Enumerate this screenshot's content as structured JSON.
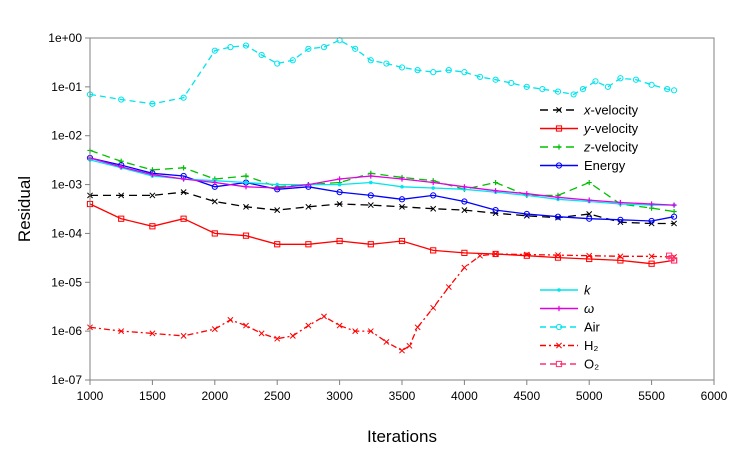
{
  "chart_data": {
    "type": "line",
    "xlabel": "Iterations",
    "ylabel": "Residual",
    "xlim": [
      1000,
      6000
    ],
    "ylim": [
      1e-07,
      1
    ],
    "yscale": "log",
    "x_ticks": [
      "1000",
      "1500",
      "2000",
      "2500",
      "3000",
      "3500",
      "4000",
      "4500",
      "5000",
      "5500",
      "6000"
    ],
    "y_ticks": [
      "1e-07",
      "1e-06",
      "1e-05",
      "1e-04",
      "1e-03",
      "1e-02",
      "1e-01",
      "1e+00"
    ],
    "grid": false,
    "legends": [
      {
        "placement": "upper-right",
        "entries": [
          "x-velocity",
          "y-velocity",
          "z-velocity",
          "Energy"
        ]
      },
      {
        "placement": "lower-right",
        "entries": [
          "k",
          "ω",
          "Air",
          "H₂",
          "O₂"
        ]
      }
    ],
    "series": [
      {
        "name": "x-velocity",
        "color": "#000000",
        "dash": "8,5",
        "marker": "x",
        "x": [
          1000,
          1250,
          1500,
          1750,
          2000,
          2250,
          2500,
          2750,
          3000,
          3250,
          3500,
          3750,
          4000,
          4250,
          4500,
          4750,
          5000,
          5250,
          5500,
          5680
        ],
        "y": [
          0.0006,
          0.0006,
          0.0006,
          0.0007,
          0.00045,
          0.00035,
          0.0003,
          0.00035,
          0.0004,
          0.00038,
          0.00035,
          0.00032,
          0.0003,
          0.00026,
          0.00023,
          0.00021,
          0.00025,
          0.00017,
          0.00016,
          0.00016
        ]
      },
      {
        "name": "y-velocity",
        "color": "#ff0000",
        "dash": "",
        "marker": "square",
        "x": [
          1000,
          1250,
          1500,
          1750,
          2000,
          2250,
          2500,
          2750,
          3000,
          3250,
          3500,
          3750,
          4000,
          4250,
          4500,
          4750,
          5000,
          5250,
          5500,
          5680
        ],
        "y": [
          0.0004,
          0.0002,
          0.00014,
          0.0002,
          0.0001,
          9e-05,
          6e-05,
          6e-05,
          7e-05,
          6e-05,
          7e-05,
          4.5e-05,
          4e-05,
          3.8e-05,
          3.5e-05,
          3.2e-05,
          3e-05,
          2.8e-05,
          2.4e-05,
          2.8e-05
        ]
      },
      {
        "name": "z-velocity",
        "color": "#00c000",
        "dash": "8,5",
        "marker": "plus",
        "x": [
          1000,
          1250,
          1500,
          1750,
          2000,
          2250,
          2500,
          2750,
          3000,
          3250,
          3500,
          3750,
          4000,
          4250,
          4500,
          4750,
          5000,
          5250,
          5500,
          5680
        ],
        "y": [
          0.005,
          0.003,
          0.002,
          0.0022,
          0.0013,
          0.0015,
          0.0009,
          0.001,
          0.0011,
          0.0017,
          0.0014,
          0.0012,
          0.0008,
          0.0011,
          0.0006,
          0.0006,
          0.0011,
          0.0004,
          0.00033,
          0.00028
        ]
      },
      {
        "name": "Energy",
        "color": "#0000ff",
        "dash": "",
        "marker": "circle",
        "x": [
          1000,
          1250,
          1500,
          1750,
          2000,
          2250,
          2500,
          2750,
          3000,
          3250,
          3500,
          3750,
          4000,
          4250,
          4500,
          4750,
          5000,
          5250,
          5500,
          5680
        ],
        "y": [
          0.0035,
          0.0025,
          0.0017,
          0.0015,
          0.0009,
          0.0011,
          0.0008,
          0.0009,
          0.0007,
          0.0006,
          0.0005,
          0.0006,
          0.00045,
          0.0003,
          0.00025,
          0.00022,
          0.0002,
          0.00019,
          0.00018,
          0.00022
        ]
      },
      {
        "name": "k",
        "color": "#00e5ee",
        "dash": "",
        "marker": "dot",
        "x": [
          1000,
          1250,
          1500,
          1750,
          2000,
          2250,
          2500,
          2750,
          3000,
          3250,
          3500,
          3750,
          4000,
          4250,
          4500,
          4750,
          5000,
          5250,
          5500,
          5680
        ],
        "y": [
          0.0032,
          0.0022,
          0.0015,
          0.0013,
          0.0012,
          0.0011,
          0.001,
          0.001,
          0.001,
          0.0011,
          0.0009,
          0.00085,
          0.0008,
          0.0007,
          0.0006,
          0.0005,
          0.00045,
          0.0004,
          0.00038,
          0.00038
        ]
      },
      {
        "name": "ω",
        "color": "#e000e0",
        "dash": "",
        "marker": "plus",
        "x": [
          1000,
          1250,
          1500,
          1750,
          2000,
          2250,
          2500,
          2750,
          3000,
          3250,
          3500,
          3750,
          4000,
          4250,
          4500,
          4750,
          5000,
          5250,
          5500,
          5680
        ],
        "y": [
          0.0035,
          0.0023,
          0.0016,
          0.0013,
          0.0011,
          0.0009,
          0.00085,
          0.001,
          0.0013,
          0.0015,
          0.0013,
          0.0011,
          0.0009,
          0.00075,
          0.00065,
          0.00055,
          0.00048,
          0.00043,
          0.0004,
          0.00038
        ]
      },
      {
        "name": "Air",
        "color": "#00e5ee",
        "dash": "6,4",
        "marker": "circle",
        "x": [
          1000,
          1250,
          1500,
          1750,
          2000,
          2125,
          2250,
          2375,
          2500,
          2625,
          2750,
          2875,
          3000,
          3125,
          3250,
          3375,
          3500,
          3625,
          3750,
          3875,
          4000,
          4125,
          4250,
          4375,
          4500,
          4625,
          4750,
          4875,
          4950,
          5050,
          5150,
          5250,
          5375,
          5500,
          5625,
          5680
        ],
        "y": [
          0.07,
          0.055,
          0.045,
          0.06,
          0.55,
          0.65,
          0.7,
          0.45,
          0.3,
          0.35,
          0.6,
          0.65,
          0.9,
          0.6,
          0.35,
          0.3,
          0.25,
          0.22,
          0.2,
          0.22,
          0.2,
          0.16,
          0.14,
          0.12,
          0.1,
          0.09,
          0.08,
          0.07,
          0.09,
          0.13,
          0.1,
          0.15,
          0.14,
          0.11,
          0.09,
          0.085
        ]
      },
      {
        "name": "H₂",
        "color": "#ff0000",
        "dash": "6,3,2,3",
        "marker": "x",
        "x": [
          1000,
          1250,
          1500,
          1750,
          2000,
          2125,
          2250,
          2375,
          2500,
          2625,
          2750,
          2875,
          3000,
          3125,
          3250,
          3375,
          3500,
          3560,
          3625,
          3750,
          3875,
          4000,
          4125,
          4250,
          4500,
          4750,
          5000,
          5250,
          5500,
          5680
        ],
        "y": [
          1.2e-06,
          1e-06,
          9e-07,
          8e-07,
          1.1e-06,
          1.7e-06,
          1.3e-06,
          9e-07,
          7e-07,
          8e-07,
          1.3e-06,
          2e-06,
          1.3e-06,
          1e-06,
          1e-06,
          6e-07,
          4e-07,
          5e-07,
          1.2e-06,
          3e-06,
          8e-06,
          2e-05,
          3.5e-05,
          3.8e-05,
          3.7e-05,
          3.6e-05,
          3.5e-05,
          3.4e-05,
          3.4e-05,
          3.3e-05
        ]
      },
      {
        "name": "O₂",
        "color": "#ff3070",
        "dash": "6,4",
        "marker": "square",
        "x": [
          5640,
          5660,
          5680
        ],
        "y": [
          3.5e-05,
          3.1e-05,
          2.8e-05
        ]
      }
    ]
  }
}
